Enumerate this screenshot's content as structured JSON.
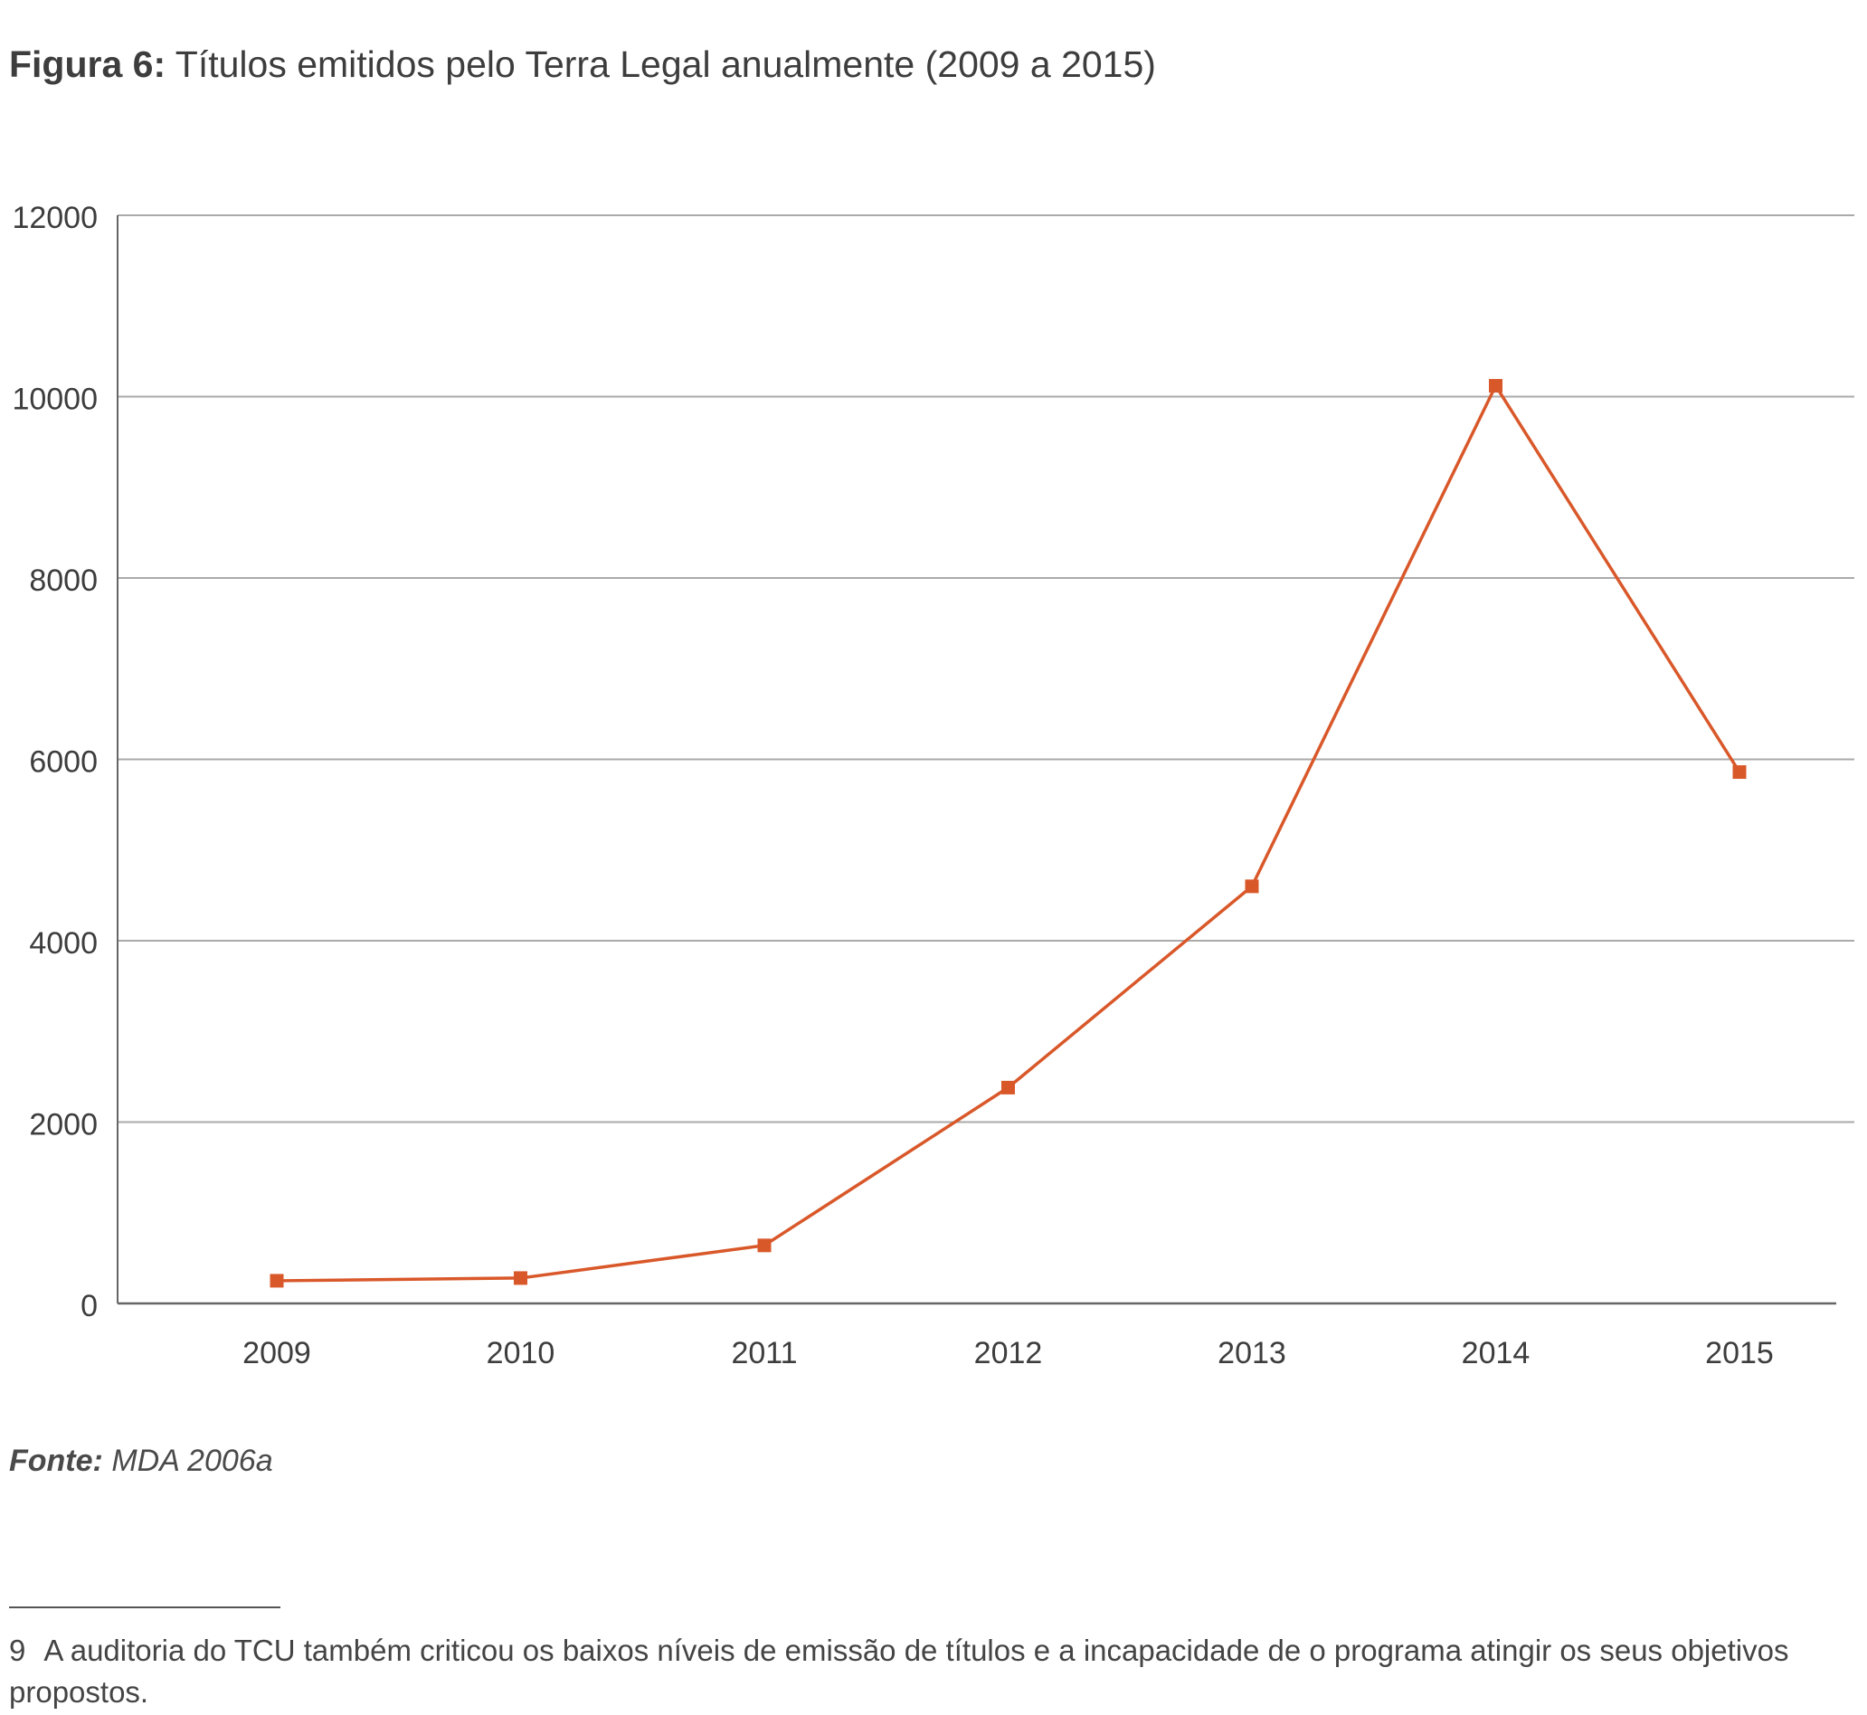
{
  "figure": {
    "label": "Figura 6:",
    "title": "Títulos emitidos pelo Terra Legal anualmente (2009 a 2015)"
  },
  "source": {
    "label": "Fonte:",
    "text": "MDA 2006a"
  },
  "footnote": {
    "number": "9",
    "text": "A auditoria do TCU também criticou os baixos níveis de emissão de títulos e a incapacidade de o programa atingir os seus objetivos propostos."
  },
  "colors": {
    "series": "#d9582a",
    "grid": "#aaaaaa",
    "axis": "#666666"
  },
  "chart_data": {
    "type": "line",
    "title": "Títulos emitidos pelo Terra Legal anualmente (2009 a 2015)",
    "xlabel": "",
    "ylabel": "",
    "categories": [
      "2009",
      "2010",
      "2011",
      "2012",
      "2013",
      "2014",
      "2015"
    ],
    "series": [
      {
        "name": "Títulos emitidos",
        "values": [
          250,
          280,
          640,
          2380,
          4600,
          10120,
          5860
        ],
        "marker": "square"
      }
    ],
    "yticks": [
      0,
      2000,
      4000,
      6000,
      8000,
      10000,
      12000
    ],
    "ytick_labels": [
      "0",
      "2000",
      "4000",
      "6000",
      "8000",
      "10000",
      "12000"
    ],
    "ylim": [
      0,
      12000
    ],
    "grid": true,
    "legend": "none"
  }
}
